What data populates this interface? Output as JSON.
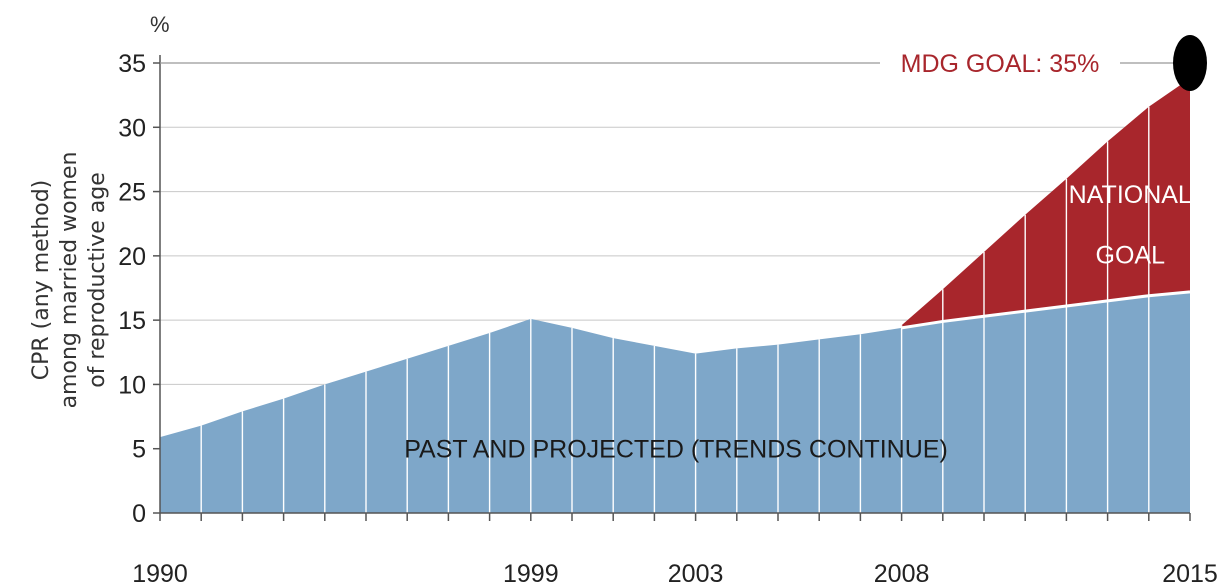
{
  "chart_data": {
    "type": "area",
    "unit_label": "%",
    "ylabel_lines": [
      "CPR (any method)",
      "among married women",
      "of reproductive age"
    ],
    "xlabel": "",
    "ylim": [
      0,
      35
    ],
    "yticks": [
      0,
      5,
      10,
      15,
      20,
      25,
      30,
      35
    ],
    "xlim": [
      1990,
      2015
    ],
    "xtick_labels": [
      "1990",
      "1999",
      "2003",
      "2008",
      "2015"
    ],
    "grid": true,
    "series": [
      {
        "name": "PAST AND PROJECTED (TRENDS CONTINUE)",
        "color": "#7ea7c9",
        "x": [
          1990,
          1991,
          1992,
          1993,
          1994,
          1995,
          1996,
          1997,
          1998,
          1999,
          2000,
          2001,
          2002,
          2003,
          2004,
          2005,
          2006,
          2007,
          2008,
          2009,
          2010,
          2011,
          2012,
          2013,
          2014,
          2015
        ],
        "values": [
          5.9,
          6.8,
          7.9,
          8.9,
          10.0,
          11.0,
          12.0,
          13.0,
          14.0,
          15.1,
          14.4,
          13.6,
          13.0,
          12.4,
          12.8,
          13.1,
          13.5,
          13.9,
          14.4,
          14.9,
          15.3,
          15.7,
          16.1,
          16.5,
          16.9,
          17.2
        ]
      },
      {
        "name": "NATIONAL GOAL",
        "color": "#a8262c",
        "x": [
          2008,
          2009,
          2010,
          2011,
          2012,
          2013,
          2014,
          2015
        ],
        "values": [
          14.6,
          17.4,
          20.3,
          23.2,
          26.0,
          28.9,
          31.6,
          33.8
        ]
      }
    ],
    "target": {
      "label": "MDG GOAL: 35%",
      "x": 2015,
      "value": 35,
      "color": "#000000",
      "label_color": "#a8262c"
    },
    "annotations": {
      "past": "PAST AND PROJECTED (TRENDS CONTINUE)",
      "national_line1": "NATIONAL",
      "national_line2": "GOAL"
    }
  }
}
